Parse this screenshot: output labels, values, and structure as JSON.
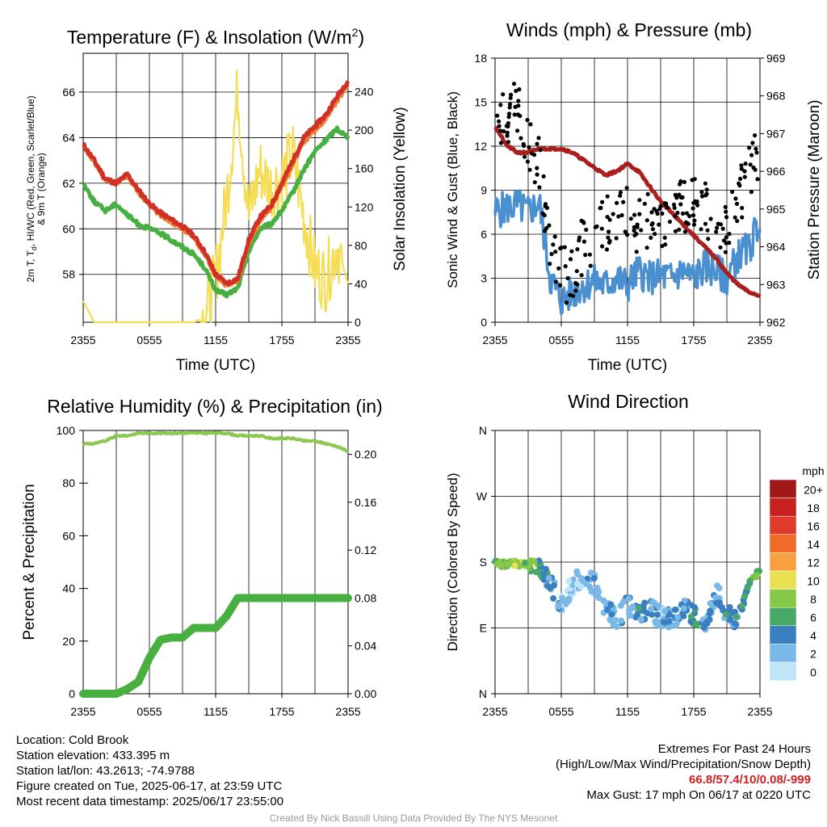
{
  "chart_data": [
    {
      "type": "line",
      "title": "Temperature (F) & Insolation (W/m²)",
      "xlabel": "Time (UTC)",
      "ylabel": "2m T, Td, HI/WC (Red, Green, Scarlet/Blue) & 9m T (Orange)",
      "y2label": "Solar Insolation (Yellow)",
      "x_ticks": [
        "2355",
        "0555",
        "1155",
        "1755",
        "2355"
      ],
      "ylim": [
        55.9,
        67.7
      ],
      "y_ticks": [
        "58",
        "60",
        "62",
        "64",
        "66"
      ],
      "y2lim": [
        0,
        280
      ],
      "y2_ticks": [
        "0",
        "40",
        "80",
        "120",
        "160",
        "200",
        "240"
      ],
      "x": [
        0,
        1,
        2,
        3,
        4,
        5,
        6,
        7,
        8,
        9,
        10,
        11,
        12,
        13,
        14,
        15,
        16,
        17,
        18,
        19,
        20,
        21,
        22,
        23,
        24
      ],
      "series": [
        {
          "color": "#d03028",
          "values": [
            63.7,
            63.0,
            62.2,
            62.0,
            62.4,
            61.7,
            61.1,
            60.7,
            60.4,
            60.1,
            59.7,
            59.0,
            58.0,
            57.6,
            57.8,
            59.5,
            60.5,
            61.0,
            62.0,
            63.0,
            64.0,
            64.5,
            65.0,
            65.8,
            66.5
          ]
        },
        {
          "color": "#f08030",
          "values": [
            63.6,
            62.9,
            62.1,
            62.0,
            62.3,
            61.6,
            61.0,
            60.6,
            60.3,
            60.0,
            59.6,
            58.9,
            57.9,
            57.5,
            57.7,
            59.3,
            60.3,
            60.9,
            61.8,
            62.8,
            63.8,
            64.3,
            64.8,
            65.6,
            66.3
          ]
        },
        {
          "color": "#48b040",
          "values": [
            62.0,
            61.2,
            60.8,
            61.1,
            60.6,
            60.2,
            60.0,
            59.8,
            59.5,
            59.2,
            58.9,
            58.3,
            57.3,
            57.1,
            57.4,
            59.0,
            60.0,
            60.2,
            60.8,
            61.6,
            62.6,
            63.4,
            63.9,
            64.4,
            64.0
          ]
        },
        {
          "color": "#f5dd55",
          "values": [
            22,
            0,
            0,
            0,
            0,
            0,
            0,
            0,
            0,
            0,
            0,
            5,
            45,
            130,
            240,
            110,
            160,
            140,
            150,
            175,
            110,
            55,
            45,
            80,
            40
          ]
        }
      ]
    },
    {
      "type": "scatter",
      "title": "Winds (mph) & Pressure (mb)",
      "xlabel": "Time (UTC)",
      "ylabel": "Sonic Wind & Gust (Blue, Black)",
      "y2label": "Station Pressure (Maroon)",
      "x_ticks": [
        "2355",
        "0555",
        "1155",
        "1755",
        "2355"
      ],
      "ylim": [
        0,
        18
      ],
      "y_ticks": [
        "0",
        "3",
        "6",
        "9",
        "12",
        "15",
        "18"
      ],
      "y2lim": [
        962,
        969
      ],
      "y2_ticks": [
        "962",
        "963",
        "964",
        "965",
        "966",
        "967",
        "968",
        "969"
      ],
      "x": [
        0,
        1,
        2,
        3,
        4,
        5,
        6,
        7,
        8,
        9,
        10,
        11,
        12,
        13,
        14,
        15,
        16,
        17,
        18,
        19,
        20,
        21,
        22,
        23,
        24
      ],
      "series": [
        {
          "color": "#4a90d0",
          "values": [
            7.5,
            7.8,
            8.0,
            7.5,
            8.2,
            3.0,
            1.5,
            2.0,
            2.5,
            2.8,
            2.5,
            3.0,
            2.5,
            3.5,
            3.0,
            3.2,
            3.0,
            3.5,
            3.0,
            3.8,
            3.5,
            3.0,
            4.5,
            5.0,
            7.0
          ]
        },
        {
          "color": "#000000",
          "values": [
            13,
            14,
            15,
            12,
            11,
            4.5,
            3.5,
            3.0,
            5.5,
            6.0,
            6.5,
            7.0,
            7.2,
            6.5,
            7.0,
            6.0,
            7.5,
            7.8,
            8.5,
            7.5,
            7.0,
            6.5,
            8.5,
            10,
            12
          ]
        },
        {
          "color": "#aa1e1e",
          "values": [
            967.2,
            966.7,
            966.5,
            966.5,
            966.6,
            966.6,
            966.6,
            966.5,
            966.3,
            966.1,
            965.9,
            966.0,
            966.2,
            966.0,
            965.6,
            965.2,
            964.9,
            964.6,
            964.3,
            964.0,
            963.7,
            963.3,
            963.0,
            962.8,
            962.7
          ]
        }
      ]
    },
    {
      "type": "line",
      "title": "Relative Humidity (%) & Precipitation (in)",
      "xlabel": "",
      "ylabel": "Percent & Precipitation",
      "x_ticks": [
        "2355",
        "0555",
        "1155",
        "1755",
        "2355"
      ],
      "ylim": [
        0,
        100
      ],
      "y_ticks": [
        "0",
        "20",
        "40",
        "60",
        "80",
        "100"
      ],
      "y2lim": [
        0,
        0.22
      ],
      "y2_ticks": [
        "0.00",
        "0.04",
        "0.08",
        "0.12",
        "0.16",
        "0.20"
      ],
      "x": [
        0,
        1,
        2,
        3,
        4,
        5,
        6,
        7,
        8,
        9,
        10,
        11,
        12,
        13,
        14,
        15,
        16,
        17,
        18,
        19,
        20,
        21,
        22,
        23,
        24
      ],
      "series": [
        {
          "color": "#8cc850",
          "values": [
            95,
            95,
            96,
            98,
            98,
            99,
            99,
            99,
            99,
            99,
            99,
            99,
            99,
            99,
            98,
            98,
            98,
            97,
            97,
            97,
            96,
            96,
            95,
            94,
            92
          ]
        },
        {
          "color": "#48b040",
          "values": [
            0,
            0,
            0,
            0,
            0.004,
            0.01,
            0.03,
            0.045,
            0.047,
            0.047,
            0.055,
            0.055,
            0.055,
            0.065,
            0.08,
            0.08,
            0.08,
            0.08,
            0.08,
            0.08,
            0.08,
            0.08,
            0.08,
            0.08,
            0.08
          ]
        }
      ]
    },
    {
      "type": "scatter",
      "title": "Wind Direction",
      "xlabel": "",
      "ylabel": "Direction (Colored By Speed)",
      "x_ticks": [
        "2355",
        "0555",
        "1155",
        "1755",
        "2355"
      ],
      "y_ticks": [
        "N",
        "E",
        "S",
        "W",
        "N"
      ],
      "ylim": [
        0,
        360
      ],
      "legend_title": "mph",
      "legend_labels": [
        "20+",
        "18",
        "16",
        "14",
        "12",
        "10",
        "8",
        "6",
        "4",
        "2",
        "0"
      ],
      "legend_colors": [
        "#a01818",
        "#c82020",
        "#e03a2a",
        "#f06a2a",
        "#f8a040",
        "#e8e050",
        "#88c848",
        "#48a868",
        "#3a80c0",
        "#7ab8e8",
        "#c0e4f8"
      ],
      "x": [
        0,
        1,
        2,
        3,
        4,
        5,
        6,
        7,
        8,
        9,
        10,
        11,
        12,
        13,
        14,
        15,
        16,
        17,
        18,
        19,
        20,
        21,
        22,
        23,
        24
      ],
      "series": [
        {
          "name": "direction",
          "values": [
            178,
            177,
            178,
            176,
            175,
            150,
            120,
            150,
            160,
            150,
            120,
            100,
            120,
            110,
            115,
            105,
            100,
            120,
            105,
            95,
            140,
            110,
            100,
            150,
            170
          ]
        },
        {
          "name": "speed",
          "values": [
            7,
            8,
            9,
            7,
            6,
            3,
            2,
            1,
            2,
            3,
            2,
            3,
            2,
            4,
            3,
            2,
            3,
            3,
            5,
            3,
            3,
            4,
            4,
            5,
            7
          ]
        }
      ]
    }
  ],
  "panels": {
    "temp": {
      "title_main": "Temperature (F) & Insolation (W/m",
      "title_sup": "2",
      "title_end": ")",
      "xlabel": "Time (UTC)",
      "ylabel_line1": "2m T, T",
      "ylabel_sub": "d",
      "ylabel_line1_end": ", HI/WC (Red, Green, Scarlet/Blue)",
      "ylabel_line2": "& 9m T (Orange)",
      "y2label": "Solar Insolation (Yellow)"
    },
    "wind": {
      "title": "Winds (mph) & Pressure (mb)",
      "xlabel": "Time (UTC)",
      "ylabel": "Sonic Wind & Gust (Blue, Black)",
      "y2label": "Station Pressure (Maroon)"
    },
    "rh": {
      "title": "Relative Humidity (%) & Precipitation (in)",
      "ylabel": "Percent & Precipitation"
    },
    "dir": {
      "title": "Wind Direction",
      "ylabel": "Direction (Colored By Speed)",
      "legend_title": "mph"
    }
  },
  "info": {
    "location": "Location: Cold Brook",
    "elevation": "Station elevation: 433.395 m",
    "latlon": "Station lat/lon: 43.2613; -74.9788",
    "created": "Figure created on Tue, 2025-06-17, at 23:59 UTC",
    "recent": "Most recent data timestamp: 2025/06/17 23:55:00",
    "extremes_title": "Extremes For Past 24 Hours",
    "extremes_desc": "(High/Low/Max Wind/Precipitation/Snow Depth)",
    "extremes_values": "66.8/57.4/10/0.08/-999",
    "max_gust": "Max Gust: 17 mph On 06/17 at 0220 UTC",
    "credit": "Created By Nick Bassill Using Data Provided By The NYS Mesonet"
  }
}
